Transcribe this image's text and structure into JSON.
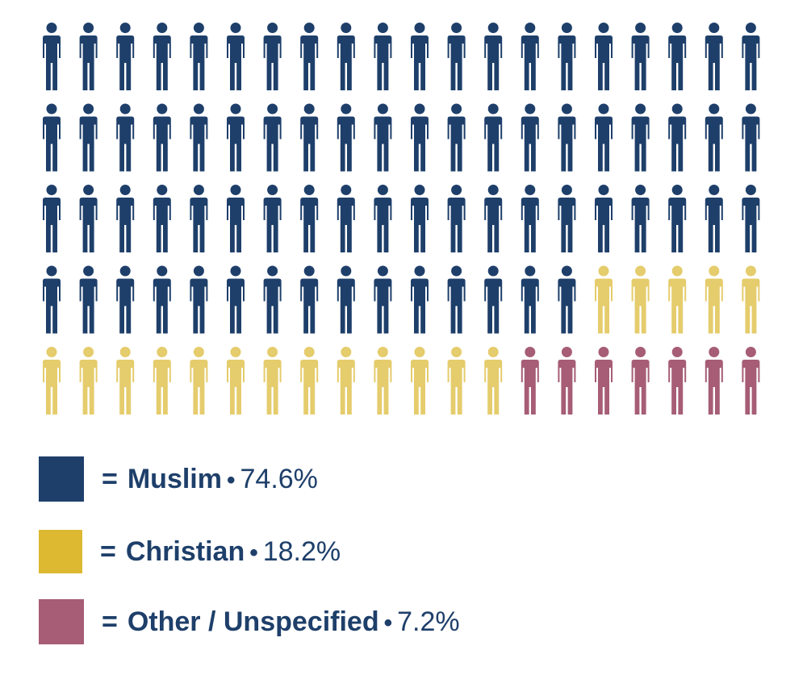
{
  "chart_data": {
    "type": "pictogram",
    "total_icons": 100,
    "columns": 20,
    "rows": 5,
    "categories": [
      {
        "name": "Muslim",
        "value": 74.6,
        "value_label": "74.6%",
        "icons": 75,
        "color": "#1e3f6a",
        "legend_color": "#1e3f6a"
      },
      {
        "name": "Christian",
        "value": 18.2,
        "value_label": "18.2%",
        "icons": 18,
        "color": "#e5cc6c",
        "legend_color": "#dcb931"
      },
      {
        "name": "Other / Unspecified",
        "value": 7.2,
        "value_label": "7.2%",
        "icons": 7,
        "color": "#a65d75",
        "legend_color": "#a65d75"
      }
    ]
  },
  "legend": {
    "equals": "=",
    "bullet": "•"
  }
}
